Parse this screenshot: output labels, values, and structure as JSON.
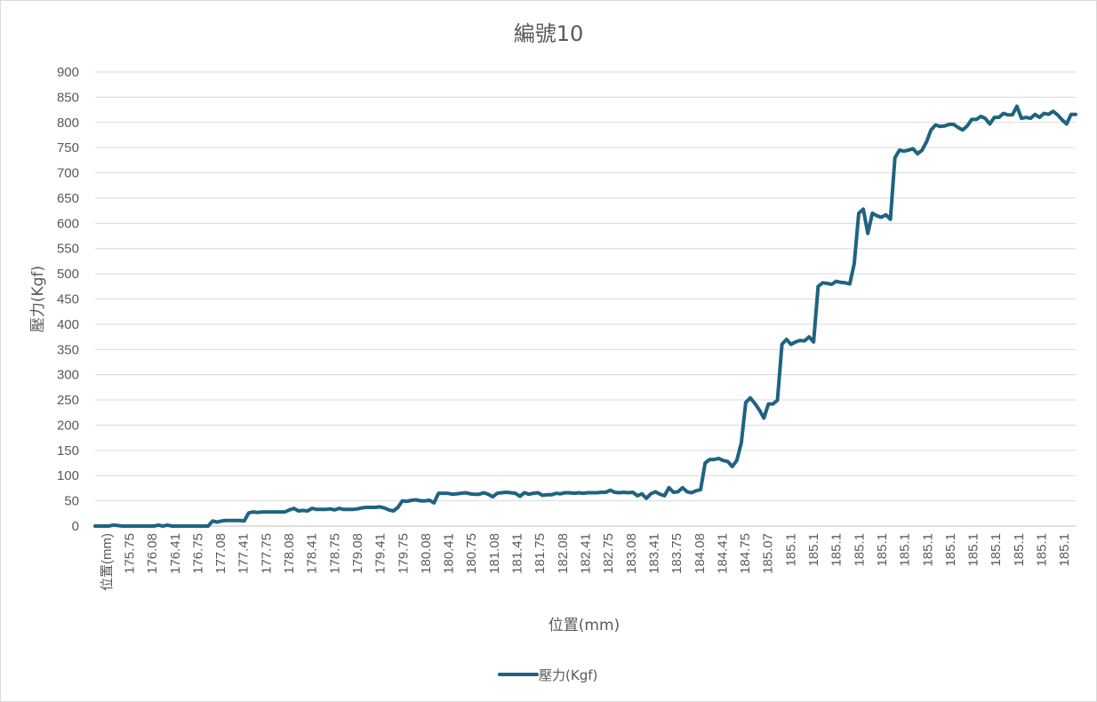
{
  "chart_data": {
    "type": "line",
    "title": "編號10",
    "xlabel": "位置(mm)",
    "ylabel": "壓力(Kgf)",
    "ylim": [
      0,
      900
    ],
    "y_ticks": [
      0,
      50,
      100,
      150,
      200,
      250,
      300,
      350,
      400,
      450,
      500,
      550,
      600,
      650,
      700,
      750,
      800,
      850,
      900
    ],
    "x_tick_labels": [
      "位置(mm)",
      "175.75",
      "176.08",
      "176.41",
      "176.75",
      "177.08",
      "177.41",
      "177.75",
      "178.08",
      "178.41",
      "178.75",
      "179.08",
      "179.41",
      "179.75",
      "180.08",
      "180.41",
      "180.75",
      "181.08",
      "181.41",
      "181.75",
      "182.08",
      "182.41",
      "182.75",
      "183.08",
      "183.41",
      "183.75",
      "184.08",
      "184.41",
      "184.75",
      "185.07",
      "185.1",
      "185.1",
      "185.1",
      "185.1",
      "185.1",
      "185.1",
      "185.1",
      "185.1",
      "185.1",
      "185.1",
      "185.1",
      "185.1",
      "185.1"
    ],
    "legend_position": "bottom",
    "grid": true,
    "series": [
      {
        "name": "壓力(Kgf)",
        "color": "#1f6381",
        "values": [
          0,
          0,
          0,
          0,
          2,
          1,
          0,
          0,
          0,
          0,
          0,
          0,
          0,
          0,
          2,
          0,
          2,
          0,
          0,
          0,
          0,
          0,
          0,
          0,
          0,
          0,
          10,
          8,
          10,
          11,
          11,
          11,
          11,
          10,
          26,
          28,
          27,
          28,
          28,
          28,
          28,
          28,
          28,
          32,
          35,
          30,
          31,
          30,
          35,
          33,
          33,
          33,
          34,
          32,
          35,
          33,
          33,
          33,
          34,
          36,
          37,
          37,
          37,
          38,
          36,
          32,
          30,
          37,
          50,
          49,
          51,
          52,
          50,
          50,
          51,
          46,
          65,
          65,
          65,
          63,
          64,
          65,
          66,
          64,
          63,
          63,
          66,
          63,
          58,
          65,
          66,
          67,
          66,
          65,
          59,
          66,
          63,
          65,
          66,
          61,
          62,
          62,
          65,
          64,
          66,
          66,
          65,
          66,
          65,
          66,
          66,
          66,
          67,
          67,
          71,
          67,
          66,
          67,
          66,
          67,
          60,
          64,
          55,
          64,
          68,
          63,
          60,
          76,
          67,
          68,
          76,
          68,
          66,
          70,
          72,
          125,
          132,
          132,
          134,
          130,
          128,
          118,
          130,
          165,
          245,
          254,
          243,
          230,
          214,
          242,
          242,
          249,
          360,
          370,
          360,
          365,
          368,
          367,
          375,
          365,
          475,
          482,
          481,
          479,
          485,
          483,
          482,
          480,
          520,
          620,
          628,
          580,
          620,
          615,
          612,
          617,
          608,
          730,
          745,
          743,
          745,
          748,
          738,
          745,
          762,
          785,
          795,
          792,
          793,
          796,
          796,
          790,
          785,
          793,
          806,
          806,
          812,
          808,
          797,
          810,
          810,
          818,
          815,
          815,
          832,
          808,
          810,
          808,
          816,
          810,
          818,
          816,
          822,
          815,
          805,
          797,
          816,
          816
        ]
      }
    ]
  }
}
